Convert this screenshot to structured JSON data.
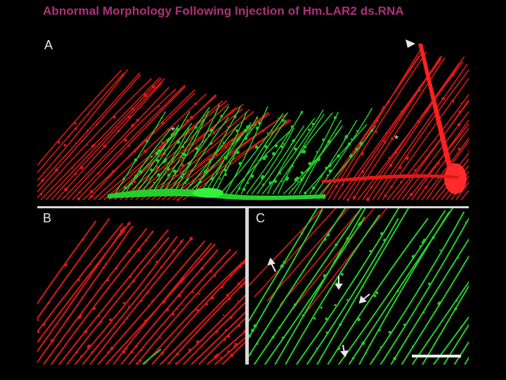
{
  "title": "Abnormal Morphology Following Injection of Hm.LAR2 ds.RNA",
  "panels": {
    "a": {
      "label": "A"
    },
    "b": {
      "label": "B"
    },
    "c": {
      "label": "C"
    }
  },
  "annotations": {
    "asterisk": "*"
  },
  "colors": {
    "title": "#b0307a",
    "red_channel": "#e01818",
    "green_channel": "#22d02a",
    "divider": "#d8d8d8",
    "background": "#000000"
  }
}
